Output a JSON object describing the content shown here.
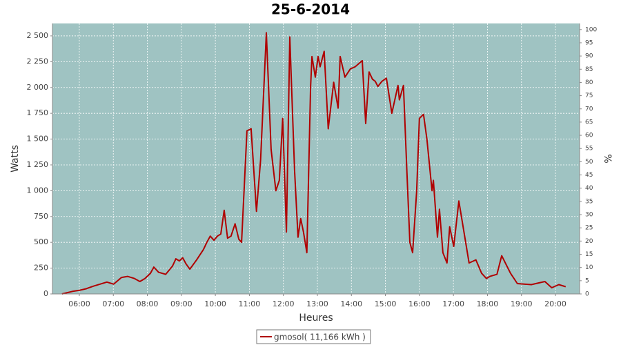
{
  "chart_data": {
    "type": "line",
    "title": "25-6-2014",
    "xlabel": "Heures",
    "ylabel": "Watts",
    "y2label": "%",
    "xlim": [
      5.21,
      20.71
    ],
    "xticks": [
      {
        "value": 6,
        "label": "06:00"
      },
      {
        "value": 7,
        "label": "07:00"
      },
      {
        "value": 8,
        "label": "08:00"
      },
      {
        "value": 9,
        "label": "09:00"
      },
      {
        "value": 10,
        "label": "10:00"
      },
      {
        "value": 11,
        "label": "11:00"
      },
      {
        "value": 12,
        "label": "12:00"
      },
      {
        "value": 13,
        "label": "13:00"
      },
      {
        "value": 14,
        "label": "14:00"
      },
      {
        "value": 15,
        "label": "15:00"
      },
      {
        "value": 16,
        "label": "16:00"
      },
      {
        "value": 17,
        "label": "17:00"
      },
      {
        "value": 18,
        "label": "18:00"
      },
      {
        "value": 19,
        "label": "19:00"
      },
      {
        "value": 20,
        "label": "20:00"
      }
    ],
    "ylim": [
      0,
      2620
    ],
    "yticks": [
      0,
      250,
      500,
      750,
      {
        "value": 1000,
        "label": "1 000"
      },
      {
        "value": 1250,
        "label": "1 250"
      },
      {
        "value": 1500,
        "label": "1 500"
      },
      {
        "value": 1750,
        "label": "1 750"
      },
      {
        "value": 2000,
        "label": "2 000"
      },
      {
        "value": 2250,
        "label": "2 250"
      },
      {
        "value": 2500,
        "label": "2 500"
      }
    ],
    "y2lim": [
      0,
      102.3
    ],
    "y2ticks": [
      0,
      5,
      10,
      15,
      20,
      25,
      30,
      35,
      40,
      45,
      50,
      55,
      60,
      65,
      70,
      75,
      80,
      85,
      90,
      95,
      100
    ],
    "grid": true,
    "legend": "bottom",
    "x": [
      5.49,
      5.8,
      6.0,
      6.2,
      6.41,
      6.61,
      6.81,
      7.01,
      7.24,
      7.42,
      7.62,
      7.78,
      7.93,
      8.09,
      8.19,
      8.33,
      8.54,
      8.74,
      8.84,
      8.94,
      9.04,
      9.14,
      9.25,
      9.45,
      9.65,
      9.75,
      9.85,
      9.96,
      10.06,
      10.16,
      10.26,
      10.36,
      10.46,
      10.58,
      10.69,
      10.77,
      10.93,
      11.05,
      11.21,
      11.33,
      11.5,
      11.64,
      11.78,
      11.88,
      11.98,
      12.09,
      12.19,
      12.33,
      12.43,
      12.51,
      12.59,
      12.69,
      12.8,
      12.84,
      12.94,
      13.02,
      13.08,
      13.2,
      13.32,
      13.48,
      13.61,
      13.67,
      13.81,
      13.97,
      14.11,
      14.32,
      14.42,
      14.52,
      14.62,
      14.7,
      14.78,
      14.9,
      15.03,
      15.19,
      15.37,
      15.41,
      15.53,
      15.63,
      15.72,
      15.8,
      15.92,
      16.0,
      16.12,
      16.22,
      16.37,
      16.41,
      16.53,
      16.59,
      16.69,
      16.81,
      16.89,
      17.01,
      17.16,
      17.46,
      17.66,
      17.83,
      17.97,
      18.07,
      18.28,
      18.42,
      18.68,
      18.88,
      19.29,
      19.69,
      19.89,
      20.1,
      20.3
    ],
    "series": [
      {
        "name": "gmosol( 11,166 kWh )",
        "color": "#b00000",
        "values": [
          0,
          25,
          35,
          50,
          75,
          95,
          115,
          95,
          160,
          170,
          150,
          120,
          150,
          200,
          260,
          210,
          190,
          270,
          340,
          320,
          350,
          290,
          240,
          330,
          430,
          500,
          560,
          520,
          560,
          580,
          810,
          540,
          560,
          680,
          530,
          500,
          1580,
          1600,
          800,
          1300,
          2530,
          1400,
          1000,
          1100,
          1700,
          600,
          2490,
          1200,
          550,
          730,
          600,
          400,
          2000,
          2300,
          2100,
          2300,
          2200,
          2350,
          1600,
          2050,
          1800,
          2300,
          2100,
          2180,
          2200,
          2260,
          1650,
          2150,
          2080,
          2060,
          2010,
          2060,
          2090,
          1750,
          2020,
          1880,
          2020,
          1200,
          500,
          400,
          1000,
          1700,
          1740,
          1500,
          1000,
          1100,
          550,
          820,
          400,
          300,
          650,
          460,
          900,
          300,
          330,
          200,
          150,
          170,
          190,
          370,
          200,
          100,
          90,
          120,
          60,
          90,
          70
        ]
      }
    ]
  }
}
